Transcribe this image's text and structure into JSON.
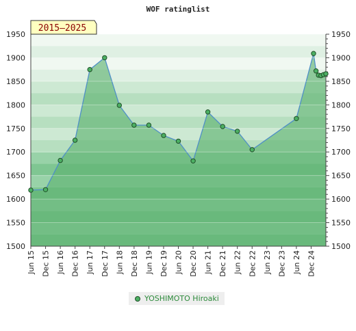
{
  "chart_data": {
    "type": "area",
    "title": "WOF ratinglist",
    "period_badge": "2015–2025",
    "ylim": [
      1500,
      1950
    ],
    "y_ticks": [
      1500,
      1550,
      1600,
      1650,
      1700,
      1750,
      1800,
      1850,
      1900,
      1950
    ],
    "x_ticks": [
      "Jun 15",
      "Dec 15",
      "Jun 16",
      "Dec 16",
      "Jun 17",
      "Dec 17",
      "Jun 18",
      "Dec 18",
      "Jun 19",
      "Dec 19",
      "Jun 20",
      "Dec 20",
      "Jun 21",
      "Dec 21",
      "Jun 22",
      "Dec 22",
      "Jun 23",
      "Dec 23",
      "Jun 24",
      "Dec 24"
    ],
    "grid": true,
    "legend_position": "bottom",
    "series": [
      {
        "name": "YOSHIMOTO Hiroaki",
        "x": [
          "2015-06",
          "2015-12",
          "2016-06",
          "2016-12",
          "2017-06",
          "2017-12",
          "2018-06",
          "2018-12",
          "2019-06",
          "2019-12",
          "2020-06",
          "2020-12",
          "2021-06",
          "2021-12",
          "2022-06",
          "2022-12",
          "2024-06",
          "2025-01",
          "2025-02",
          "2025-03",
          "2025-04",
          "2025-05",
          "2025-06"
        ],
        "values": [
          1619,
          1620,
          1682,
          1725,
          1875,
          1900,
          1799,
          1757,
          1757,
          1735,
          1723,
          1681,
          1785,
          1754,
          1744,
          1705,
          1771,
          1909,
          1872,
          1863,
          1862,
          1864,
          1866
        ]
      }
    ]
  },
  "legend": {
    "label": "YOSHIMOTO Hiroaki"
  },
  "colors": {
    "area_fill": "#5cb270",
    "line": "#4f8fc7",
    "marker": "#4caf63",
    "marker_stroke": "#1f4f28",
    "badge_bg": "#ffffc0",
    "badge_text": "#8b0000"
  }
}
